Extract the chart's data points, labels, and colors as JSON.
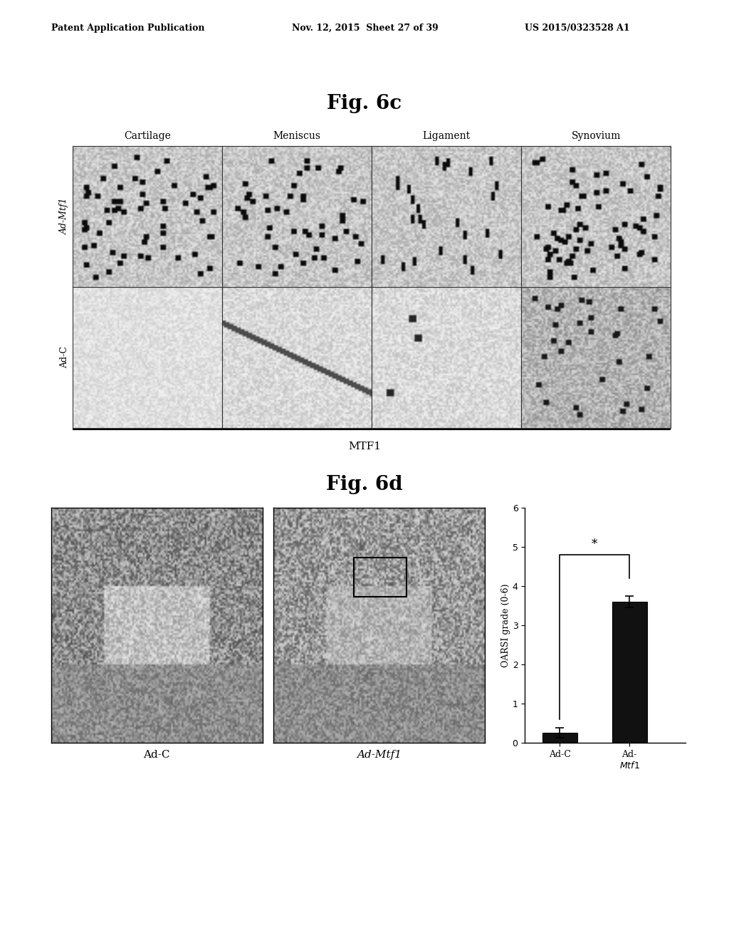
{
  "header_left": "Patent Application Publication",
  "header_mid": "Nov. 12, 2015  Sheet 27 of 39",
  "header_right": "US 2015/0323528 A1",
  "fig6c_title": "Fig. 6c",
  "fig6c_col_labels": [
    "Cartilage",
    "Meniscus",
    "Ligament",
    "Synovium"
  ],
  "fig6c_row_labels": [
    "Ad-C",
    "Ad-Mtf1"
  ],
  "fig6c_row_label_italic": [
    false,
    true
  ],
  "fig6c_xlabel": "MTF1",
  "fig6d_title": "Fig. 6d",
  "fig6d_xlabel_left": "Ad-C",
  "fig6d_xlabel_right": "Ad-Mtf1",
  "bar_categories": [
    "Ad-C",
    "Ad-\nMtf1"
  ],
  "bar_values": [
    0.25,
    3.6
  ],
  "bar_errors": [
    0.12,
    0.15
  ],
  "bar_color": "#111111",
  "ylabel": "OARSI grade (0-6)",
  "ylim": [
    0,
    6
  ],
  "yticks": [
    0,
    1,
    2,
    3,
    4,
    5,
    6
  ],
  "significance_text": "*",
  "bg_color": "#ffffff",
  "grid_gray": "#c8c8c8",
  "panel_border": "#000000"
}
